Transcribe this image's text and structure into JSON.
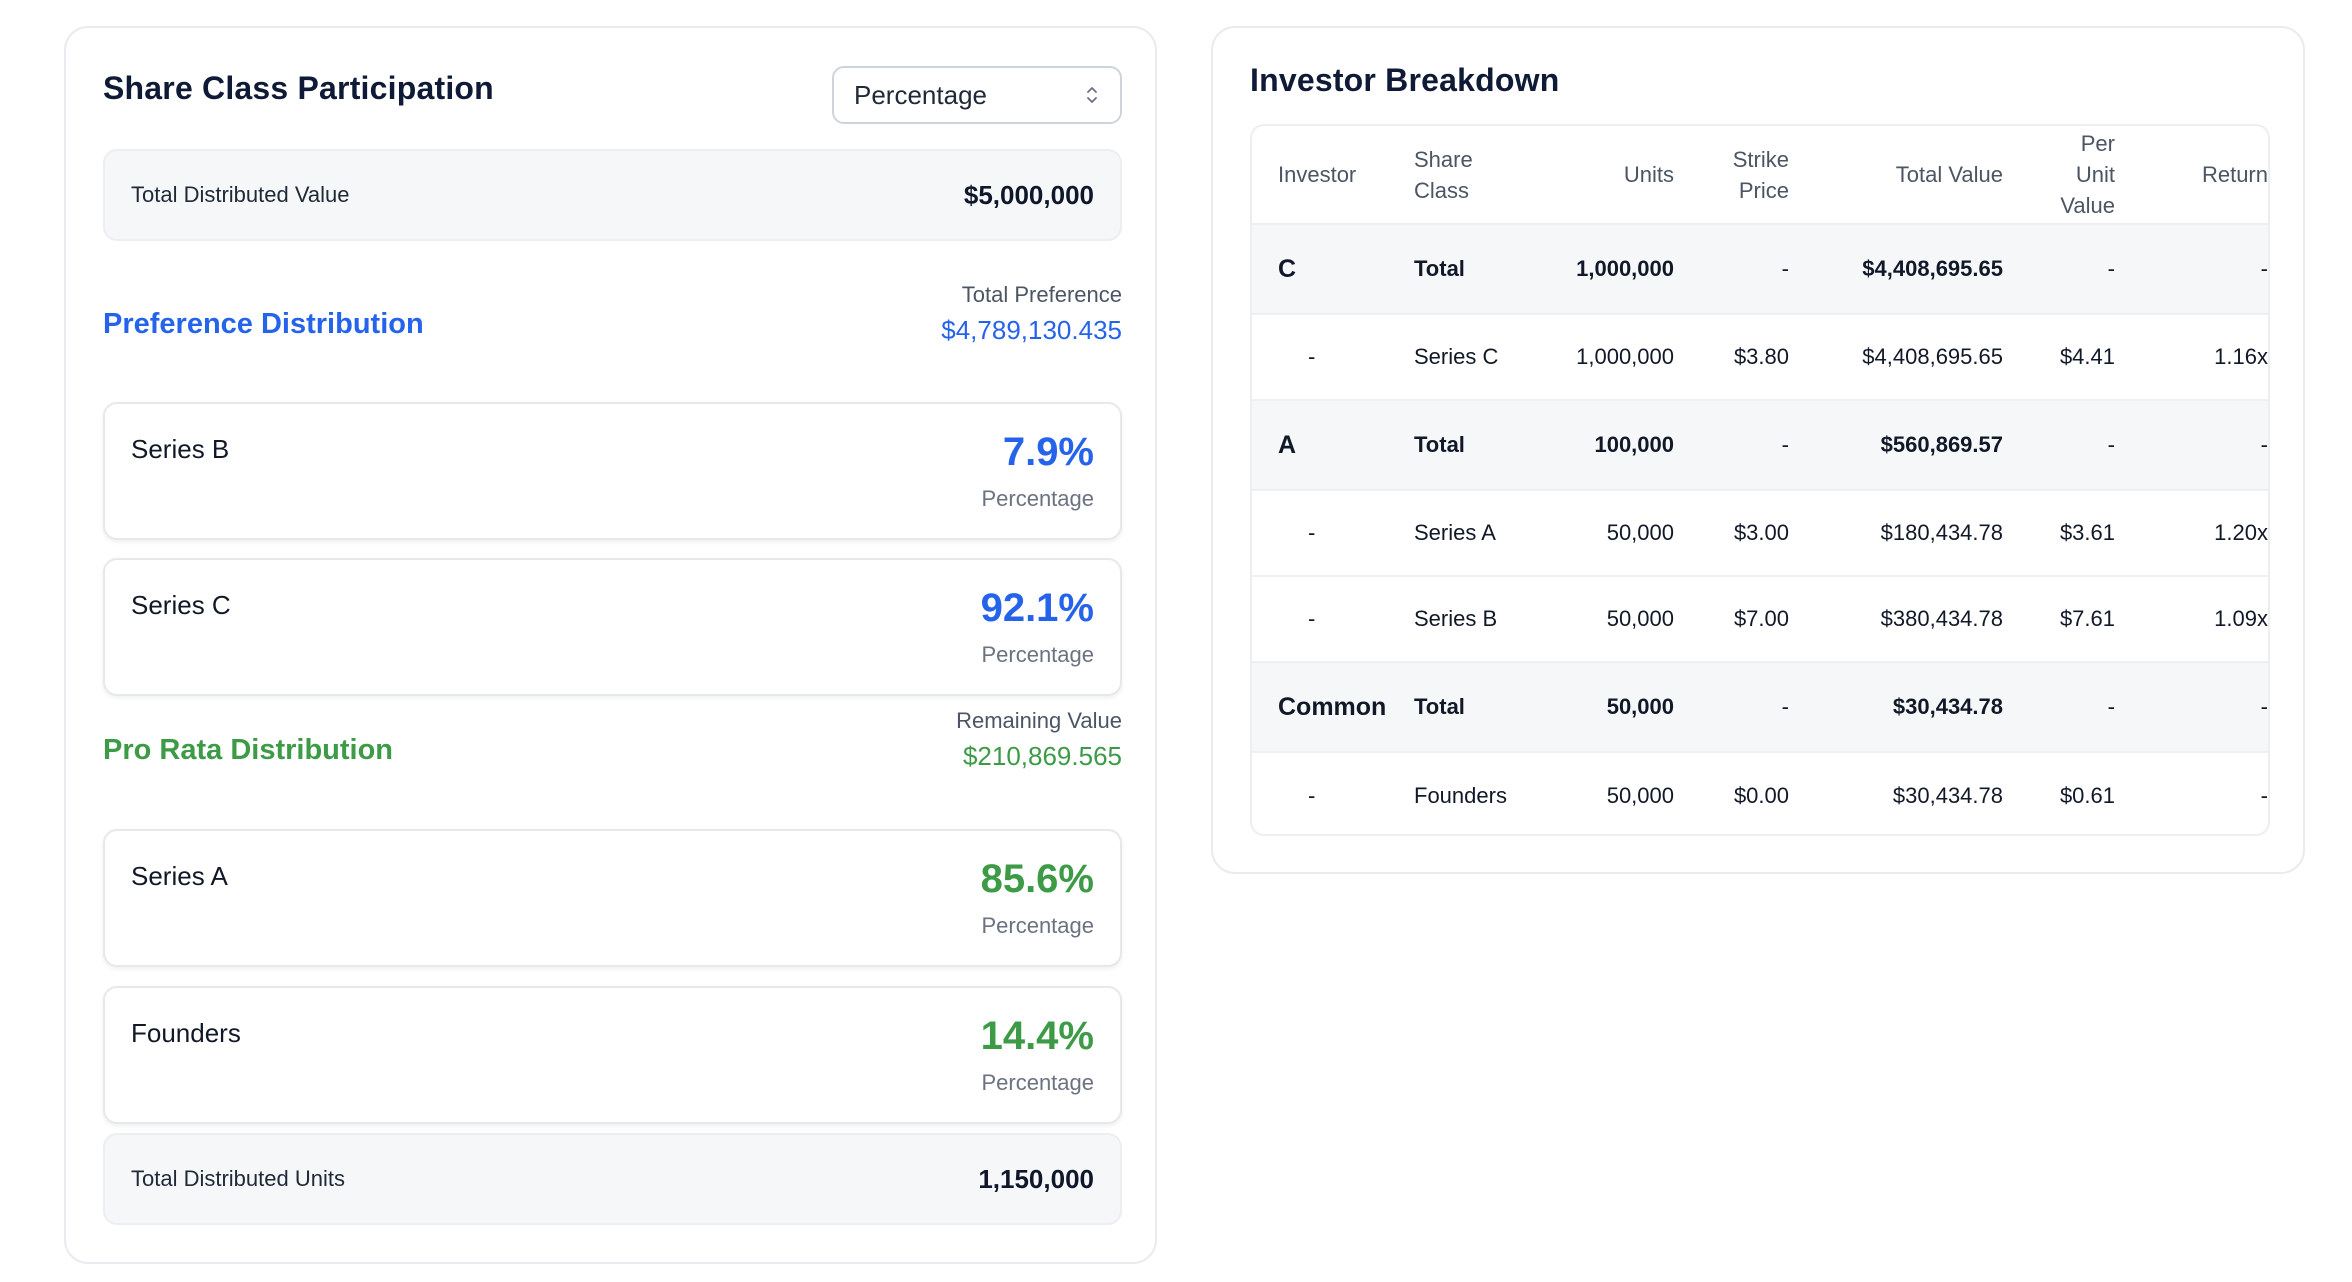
{
  "left_panel": {
    "title": "Share Class Participation",
    "select": {
      "value": "Percentage"
    },
    "total_distributed_value": {
      "label": "Total Distributed Value",
      "value": "$5,000,000"
    },
    "preference": {
      "title": "Preference Distribution",
      "meta_label": "Total Preference",
      "meta_value": "$4,789,130.435",
      "items": [
        {
          "name": "Series B",
          "value": "7.9%",
          "sub": "Percentage"
        },
        {
          "name": "Series C",
          "value": "92.1%",
          "sub": "Percentage"
        }
      ]
    },
    "pro_rata": {
      "title": "Pro Rata Distribution",
      "meta_label": "Remaining Value",
      "meta_value": "$210,869.565",
      "items": [
        {
          "name": "Series A",
          "value": "85.6%",
          "sub": "Percentage"
        },
        {
          "name": "Founders",
          "value": "14.4%",
          "sub": "Percentage"
        }
      ]
    },
    "total_distributed_units": {
      "label": "Total Distributed Units",
      "value": "1,150,000"
    }
  },
  "right_panel": {
    "title": "Investor Breakdown",
    "headers": [
      "Investor",
      "Share\nClass",
      "Units",
      "Strike\nPrice",
      "Total Value",
      "Per\nUnit\nValue",
      "Return"
    ],
    "rows": [
      {
        "type": "total",
        "investor": "C",
        "share_class": "Total",
        "units": "1,000,000",
        "strike": "-",
        "total_value": "$4,408,695.65",
        "per_unit": "-",
        "return": "-"
      },
      {
        "type": "detail",
        "investor": "-",
        "share_class": "Series C",
        "units": "1,000,000",
        "strike": "$3.80",
        "total_value": "$4,408,695.65",
        "per_unit": "$4.41",
        "return": "1.16x"
      },
      {
        "type": "total",
        "investor": "A",
        "share_class": "Total",
        "units": "100,000",
        "strike": "-",
        "total_value": "$560,869.57",
        "per_unit": "-",
        "return": "-"
      },
      {
        "type": "detail",
        "investor": "-",
        "share_class": "Series A",
        "units": "50,000",
        "strike": "$3.00",
        "total_value": "$180,434.78",
        "per_unit": "$3.61",
        "return": "1.20x"
      },
      {
        "type": "detail",
        "investor": "-",
        "share_class": "Series B",
        "units": "50,000",
        "strike": "$7.00",
        "total_value": "$380,434.78",
        "per_unit": "$7.61",
        "return": "1.09x"
      },
      {
        "type": "total",
        "investor": "Common",
        "share_class": "Total",
        "units": "50,000",
        "strike": "-",
        "total_value": "$30,434.78",
        "per_unit": "-",
        "return": "-"
      },
      {
        "type": "detail",
        "investor": "-",
        "share_class": "Founders",
        "units": "50,000",
        "strike": "$0.00",
        "total_value": "$30,434.78",
        "per_unit": "$0.61",
        "return": "-"
      }
    ]
  },
  "colors": {
    "preference_accent": "#2563eb",
    "pro_rata_accent": "#3d9a47"
  }
}
